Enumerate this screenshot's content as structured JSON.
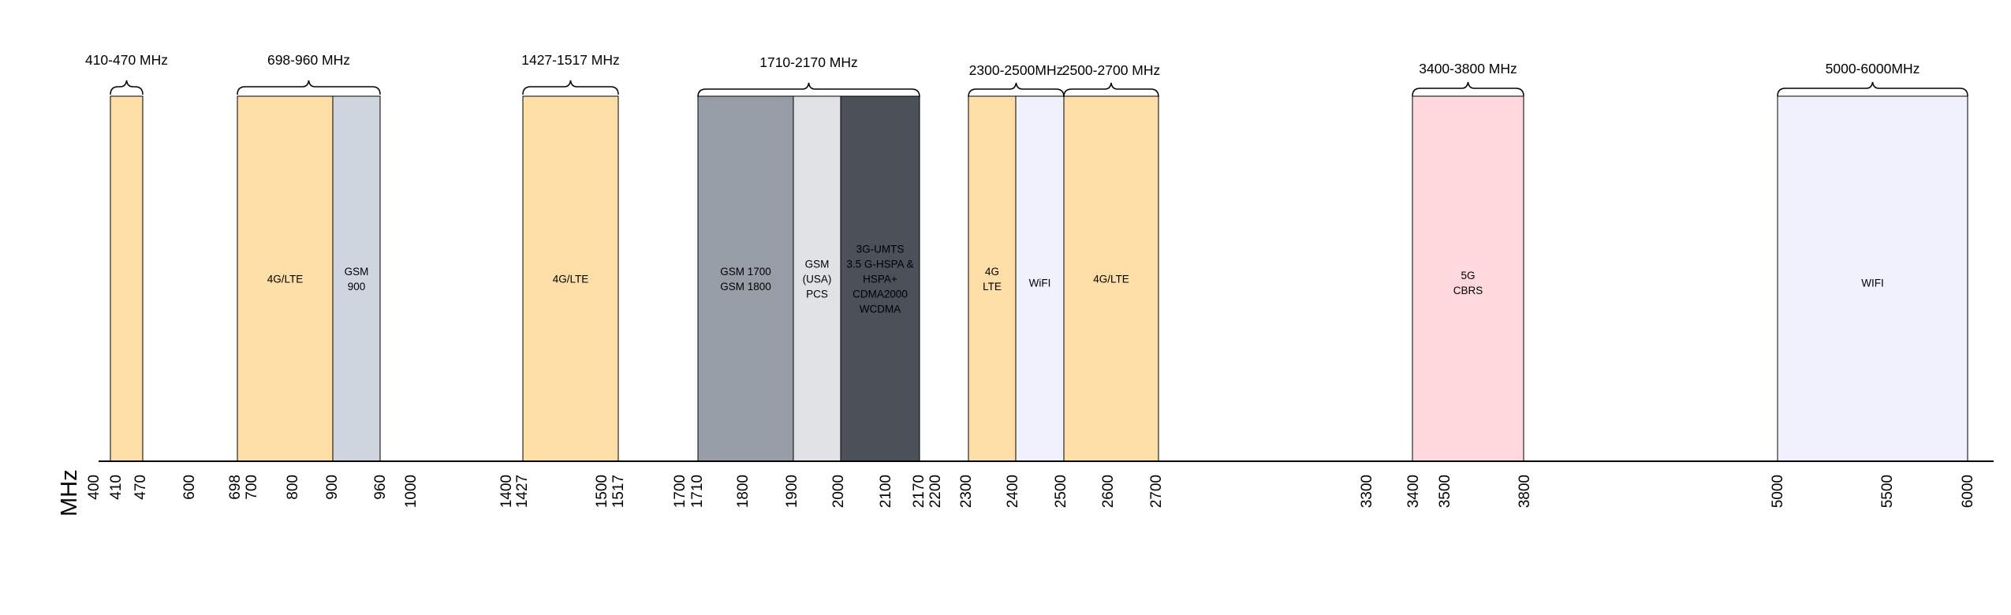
{
  "unit_label": "MHz",
  "colors": {
    "orange": "#fddea6",
    "blue_gray": "#ced5df",
    "gray": "#969da6",
    "light_gray": "#e0e2e6",
    "dark_gray": "#4b5059",
    "lavender": "#f1f1fd",
    "pink": "#fed8dc",
    "line": "#000000"
  },
  "bands": [
    {
      "label": "",
      "color": "orange"
    },
    {
      "label": "4G/LTE",
      "color": "orange"
    },
    {
      "label": "GSM\n900",
      "color": "blue_gray"
    },
    {
      "label": "4G/LTE",
      "color": "orange"
    },
    {
      "label": "GSM 1700\nGSM 1800",
      "color": "gray"
    },
    {
      "label": "GSM\n(USA)\nPCS",
      "color": "light_gray"
    },
    {
      "label": "3G-UMTS\n3.5 G-HSPA &\nHSPA+\nCDMA2000\nWCDMA",
      "color": "dark_gray"
    },
    {
      "label": "4G\nLTE",
      "color": "orange"
    },
    {
      "label": "WiFI",
      "color": "lavender"
    },
    {
      "label": "4G/LTE",
      "color": "orange"
    },
    {
      "label": "5G\nCBRS",
      "color": "pink"
    },
    {
      "label": "WIFI",
      "color": "lavender"
    }
  ],
  "ranges": [
    {
      "label": "410-470 MHz"
    },
    {
      "label": "698-960 MHz"
    },
    {
      "label": "1427-1517 MHz"
    },
    {
      "label": "1710-2170 MHz"
    },
    {
      "label": "2300-2500MHz"
    },
    {
      "label": "2500-2700 MHz"
    },
    {
      "label": "3400-3800 MHz"
    },
    {
      "label": "5000-6000MHz"
    }
  ],
  "ticks": [
    "400",
    "410",
    "470",
    "600",
    "698",
    "700",
    "800",
    "900",
    "960",
    "1000",
    "1400",
    "1427",
    "1500",
    "1517",
    "1700",
    "1710",
    "1800",
    "1900",
    "2000",
    "2100",
    "2170",
    "2200",
    "2300",
    "2400",
    "2500",
    "2600",
    "2700",
    "3300",
    "3400",
    "3500",
    "3800",
    "5000",
    "5500",
    "6000"
  ]
}
